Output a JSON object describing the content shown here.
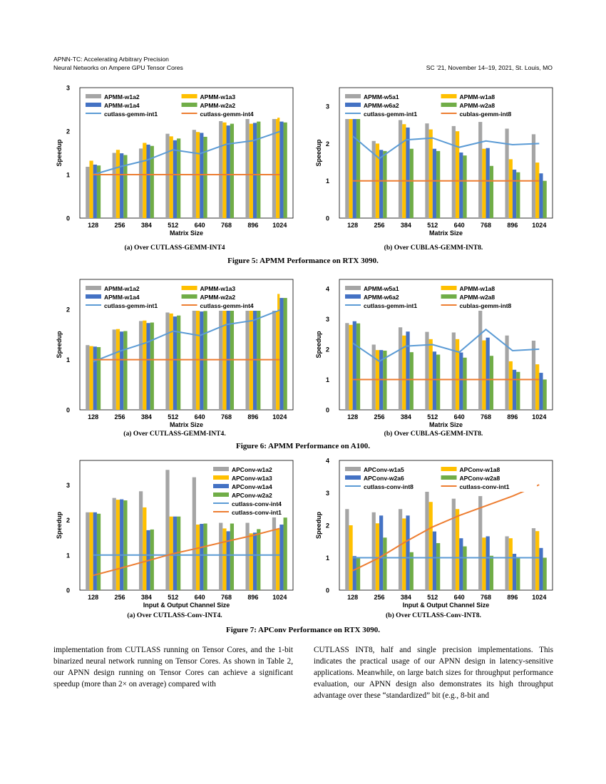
{
  "header": {
    "left_line1": "APNN-TC: Accelerating Arbitrary Precision",
    "left_line2": "Neural Networks on Ampere GPU Tensor Cores",
    "right": "SC ’21, November 14–19, 2021, St. Louis, MO"
  },
  "captions": {
    "fig5a": "(a) Over CUTLASS-GEMM-INT4",
    "fig5b": "(b) Over CUBLAS-GEMM-INT8.",
    "fig5": "Figure 5: APMM Performance on RTX 3090.",
    "fig6a": "(a) Over CUTLASS-GEMM-INT4.",
    "fig6b": "(b) Over CUBLAS-GEMM-INT8.",
    "fig6": "Figure 6: APMM Performance on A100.",
    "fig7a": "(a) Over CUTLASS-Conv-INT4.",
    "fig7b": "(b) Over CUTLASS-Conv-INT8.",
    "fig7": "Figure 7: APConv Performance on RTX 3090."
  },
  "body_text": {
    "left": "implementation from CUTLASS running on Tensor Cores, and the 1-bit binarized neural network running on Tensor Cores. As shown in Table 2, our APNN design running on Tensor Cores can achieve a significant speedup (more than 2× on average) compared with",
    "right": "CUTLASS INT8, half and single precision implementations. This indicates the practical usage of our APNN design in latency-sensitive applications. Meanwhile, on large batch sizes for throughput performance evaluation, our APNN design also demonstrates its high throughput advantage over these “standardized” bit (e.g., 8-bit and"
  },
  "colors": {
    "gray": "#a5a5a5",
    "gold": "#ffc000",
    "blue": "#4472c4",
    "green": "#70ad47",
    "lightblue": "#5b9bd5",
    "orange": "#ed7d31"
  },
  "chart_data": [
    {
      "id": "fig5a",
      "type": "bar",
      "categories": [
        "128",
        "256",
        "384",
        "512",
        "640",
        "768",
        "896",
        "1024"
      ],
      "xlabel": "Matrix Size",
      "ylabel": "Speedup",
      "ylim": [
        0,
        3
      ],
      "yticks": [
        0,
        1,
        2,
        3
      ],
      "legend_columns": 2,
      "legend_placement": "top-left",
      "series": [
        {
          "name": "APMM-w1a2",
          "kind": "bar",
          "color": "gray",
          "values": [
            1.18,
            1.5,
            1.6,
            1.94,
            2.03,
            2.23,
            2.3,
            2.37
          ]
        },
        {
          "name": "APMM-w1a3",
          "kind": "bar",
          "color": "gold",
          "values": [
            1.32,
            1.57,
            1.73,
            1.88,
            1.98,
            2.2,
            2.17,
            2.31
          ]
        },
        {
          "name": "APMM-w1a4",
          "kind": "bar",
          "color": "blue",
          "values": [
            1.23,
            1.49,
            1.69,
            1.79,
            1.96,
            2.13,
            2.19,
            2.22
          ]
        },
        {
          "name": "APMM-w2a2",
          "kind": "bar",
          "color": "green",
          "values": [
            1.21,
            1.45,
            1.66,
            1.83,
            1.87,
            2.17,
            2.22,
            2.2
          ]
        },
        {
          "name": "cutlass-gemm-int1",
          "kind": "line",
          "color": "lightblue",
          "values": [
            1.0,
            1.18,
            1.33,
            1.57,
            1.48,
            1.7,
            1.78,
            1.99
          ]
        },
        {
          "name": "cutlass-gemm-int4",
          "kind": "line",
          "color": "orange",
          "values": [
            1,
            1,
            1,
            1,
            1,
            1,
            1,
            1
          ]
        }
      ]
    },
    {
      "id": "fig5b",
      "type": "bar",
      "categories": [
        "128",
        "256",
        "384",
        "512",
        "640",
        "768",
        "896",
        "1024"
      ],
      "xlabel": "Matrix Size",
      "ylabel": "Speedup",
      "ylim": [
        0,
        3.5
      ],
      "yticks": [
        0,
        1,
        2,
        3
      ],
      "legend_columns": 2,
      "legend_placement": "top-left",
      "series": [
        {
          "name": "APMM-w5a1",
          "kind": "bar",
          "color": "gray",
          "values": [
            3.0,
            2.07,
            2.63,
            2.54,
            2.47,
            2.58,
            2.4,
            2.25
          ]
        },
        {
          "name": "APMM-w1a8",
          "kind": "bar",
          "color": "gold",
          "values": [
            2.83,
            2.0,
            2.52,
            2.38,
            2.33,
            1.86,
            1.58,
            1.49
          ]
        },
        {
          "name": "APMM-w6a2",
          "kind": "bar",
          "color": "blue",
          "values": [
            2.87,
            1.83,
            2.43,
            1.86,
            1.76,
            1.88,
            1.3,
            1.2
          ]
        },
        {
          "name": "APMM-w2a8",
          "kind": "bar",
          "color": "green",
          "values": [
            2.74,
            1.8,
            1.86,
            1.8,
            1.68,
            1.4,
            1.23,
            1.0
          ]
        },
        {
          "name": "cutlass-gemm-int1",
          "kind": "line",
          "color": "lightblue",
          "values": [
            2.2,
            1.6,
            2.1,
            2.15,
            1.9,
            2.07,
            1.97,
            2.0
          ]
        },
        {
          "name": "cublas-gemm-int8",
          "kind": "line",
          "color": "orange",
          "values": [
            1,
            1,
            1,
            1,
            1,
            1,
            1,
            1
          ]
        }
      ]
    },
    {
      "id": "fig6a",
      "type": "bar",
      "categories": [
        "128",
        "256",
        "384",
        "512",
        "640",
        "768",
        "896",
        "1024"
      ],
      "xlabel": "Matrix Size",
      "ylabel": "Speedup",
      "ylim": [
        0,
        2.6
      ],
      "yticks": [
        0,
        1,
        2
      ],
      "legend_columns": 2,
      "legend_placement": "top-left",
      "series": [
        {
          "name": "APMM-w1a2",
          "kind": "bar",
          "color": "gray",
          "values": [
            1.29,
            1.6,
            1.77,
            1.94,
            2.02,
            2.22,
            2.27,
            2.35
          ]
        },
        {
          "name": "APMM-w1a3",
          "kind": "bar",
          "color": "gold",
          "values": [
            1.27,
            1.61,
            1.78,
            1.92,
            2.04,
            2.24,
            2.25,
            2.31
          ]
        },
        {
          "name": "APMM-w1a4",
          "kind": "bar",
          "color": "blue",
          "values": [
            1.26,
            1.56,
            1.73,
            1.86,
            1.96,
            2.11,
            2.14,
            2.23
          ]
        },
        {
          "name": "APMM-w2a2",
          "kind": "bar",
          "color": "green",
          "values": [
            1.25,
            1.57,
            1.74,
            1.88,
            1.97,
            2.14,
            2.21,
            2.23
          ]
        },
        {
          "name": "cutlass-gemm-int1",
          "kind": "line",
          "color": "lightblue",
          "values": [
            0.96,
            1.17,
            1.34,
            1.57,
            1.48,
            1.7,
            1.78,
            1.99
          ]
        },
        {
          "name": "cutlass-gemm-int4",
          "kind": "line",
          "color": "orange",
          "values": [
            1,
            1,
            1,
            1,
            1,
            1,
            1,
            1
          ]
        }
      ]
    },
    {
      "id": "fig6b",
      "type": "bar",
      "categories": [
        "128",
        "256",
        "384",
        "512",
        "640",
        "768",
        "896",
        "1024"
      ],
      "xlabel": "Matrix Size",
      "ylabel": "Speedup",
      "ylim": [
        0,
        4.3
      ],
      "yticks": [
        0,
        1,
        2,
        3,
        4
      ],
      "legend_columns": 2,
      "legend_placement": "top-left",
      "series": [
        {
          "name": "APMM-w5a1",
          "kind": "bar",
          "color": "gray",
          "values": [
            2.86,
            2.15,
            2.72,
            2.57,
            2.55,
            3.38,
            2.45,
            2.28
          ]
        },
        {
          "name": "APMM-w1a8",
          "kind": "bar",
          "color": "gold",
          "values": [
            2.8,
            1.97,
            2.45,
            2.33,
            2.33,
            2.29,
            1.6,
            1.5
          ]
        },
        {
          "name": "APMM-w6a2",
          "kind": "bar",
          "color": "blue",
          "values": [
            2.92,
            1.97,
            2.58,
            1.92,
            1.89,
            2.38,
            1.32,
            1.22
          ]
        },
        {
          "name": "APMM-w2a8",
          "kind": "bar",
          "color": "green",
          "values": [
            2.85,
            1.95,
            1.9,
            1.82,
            1.72,
            1.78,
            1.25,
            1.0
          ]
        },
        {
          "name": "cutlass-gemm-int1",
          "kind": "line",
          "color": "lightblue",
          "values": [
            2.2,
            1.6,
            2.1,
            2.15,
            1.9,
            2.65,
            1.95,
            2.0
          ]
        },
        {
          "name": "cublas-gemm-int8",
          "kind": "line",
          "color": "orange",
          "values": [
            1,
            1,
            1,
            1,
            1,
            1,
            1,
            1
          ]
        }
      ]
    },
    {
      "id": "fig7a",
      "type": "bar",
      "categories": [
        "128",
        "256",
        "384",
        "512",
        "640",
        "768",
        "896",
        "1024"
      ],
      "xlabel": "Input & Output Channel Size",
      "ylabel": "Speedup",
      "ylim": [
        0,
        3.7
      ],
      "yticks": [
        0,
        1,
        2,
        3
      ],
      "legend_columns": 1,
      "legend_placement": "top-right",
      "series": [
        {
          "name": "APConv-w1a2",
          "kind": "bar",
          "color": "gray",
          "values": [
            2.22,
            2.63,
            2.82,
            3.43,
            3.22,
            1.92,
            1.92,
            2.13
          ]
        },
        {
          "name": "APConv-w1a3",
          "kind": "bar",
          "color": "gold",
          "values": [
            2.22,
            2.58,
            2.36,
            2.1,
            1.87,
            1.76,
            1.62,
            1.75
          ]
        },
        {
          "name": "APConv-w1a4",
          "kind": "bar",
          "color": "blue",
          "values": [
            2.22,
            2.59,
            1.71,
            2.1,
            1.89,
            1.68,
            1.64,
            1.87
          ]
        },
        {
          "name": "APConv-w2a2",
          "kind": "bar",
          "color": "green",
          "values": [
            2.18,
            2.56,
            1.73,
            2.1,
            1.9,
            1.9,
            1.74,
            2.07
          ]
        },
        {
          "name": "cutlass-conv-int4",
          "kind": "line",
          "color": "lightblue",
          "values": [
            1,
            1,
            1,
            1,
            1,
            1,
            1,
            1
          ]
        },
        {
          "name": "cutlass-conv-int1",
          "kind": "line",
          "color": "orange",
          "values": [
            0.42,
            0.62,
            0.83,
            1.04,
            1.21,
            1.39,
            1.56,
            1.76
          ]
        }
      ]
    },
    {
      "id": "fig7b",
      "type": "bar",
      "categories": [
        "128",
        "256",
        "384",
        "512",
        "640",
        "768",
        "896",
        "1024"
      ],
      "xlabel": "Input & Output Channel Size",
      "ylabel": "Speedup",
      "ylim": [
        0,
        4
      ],
      "yticks": [
        0,
        1,
        2,
        3,
        4
      ],
      "legend_columns": 2,
      "legend_placement": "top-left",
      "series": [
        {
          "name": "APConv-w1a5",
          "kind": "bar",
          "color": "gray",
          "values": [
            2.5,
            2.4,
            2.5,
            3.05,
            2.82,
            2.9,
            1.66,
            1.91
          ]
        },
        {
          "name": "APConv-w1a8",
          "kind": "bar",
          "color": "gold",
          "values": [
            2.0,
            2.06,
            2.21,
            2.72,
            2.5,
            1.62,
            1.6,
            1.82
          ]
        },
        {
          "name": "APConv-w2a6",
          "kind": "bar",
          "color": "blue",
          "values": [
            1.05,
            2.3,
            2.3,
            1.81,
            1.6,
            1.66,
            1.12,
            1.3
          ]
        },
        {
          "name": "APConv-w2a8",
          "kind": "bar",
          "color": "green",
          "values": [
            1.0,
            1.62,
            1.17,
            1.45,
            1.35,
            1.06,
            1.0,
            1.0
          ]
        },
        {
          "name": "cutlass-conv-int8",
          "kind": "line",
          "color": "lightblue",
          "values": [
            1,
            1,
            1,
            1,
            1,
            1,
            1,
            1
          ]
        },
        {
          "name": "cutlass-conv-int1",
          "kind": "line",
          "color": "orange",
          "values": [
            0.6,
            1.0,
            1.5,
            1.95,
            2.3,
            2.6,
            2.9,
            3.25
          ]
        }
      ]
    }
  ]
}
